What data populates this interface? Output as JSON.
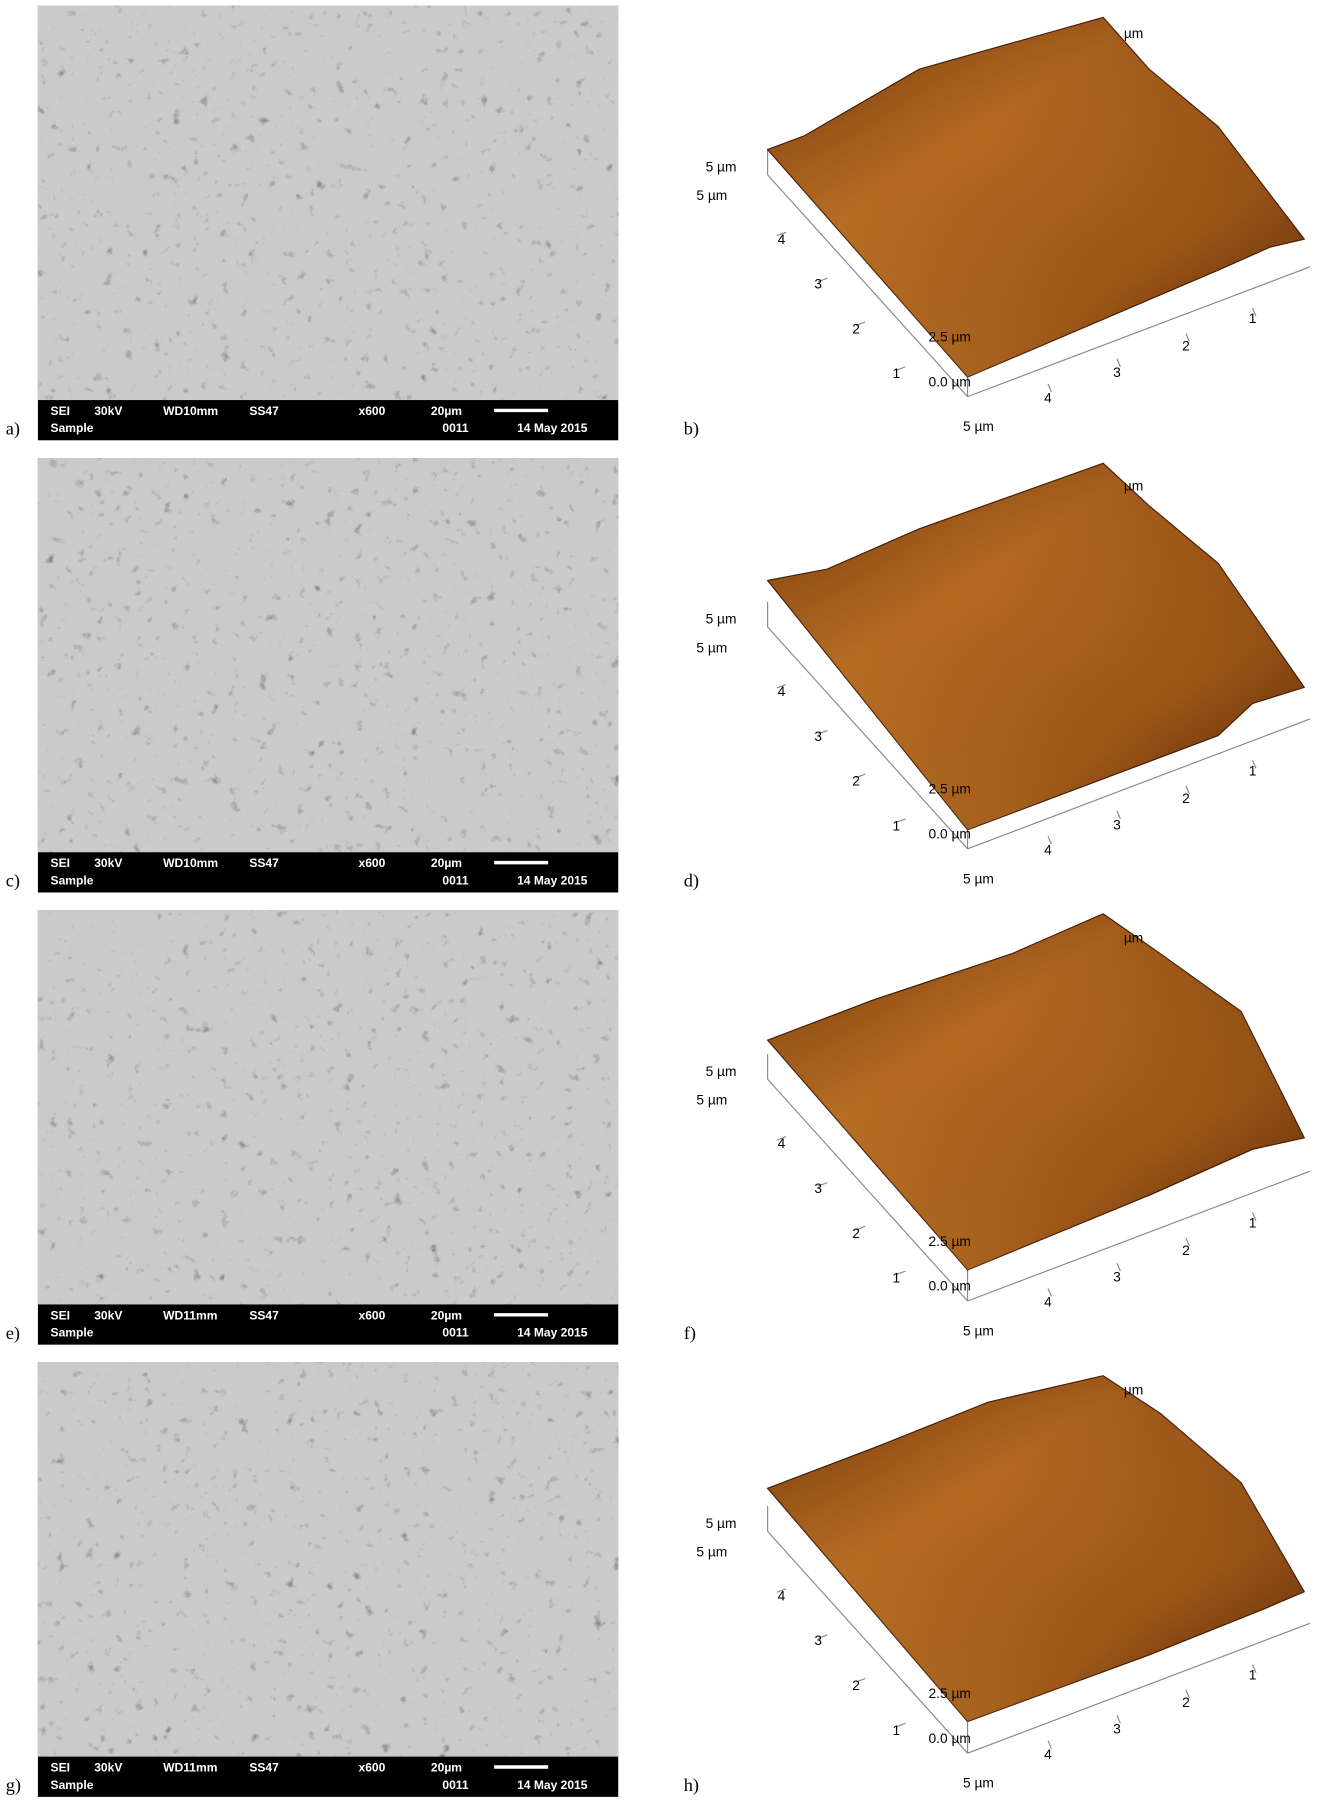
{
  "figure": {
    "rows": [
      {
        "sem": {
          "label": "a)",
          "info": [
            "SEI",
            "30kV",
            "WD10mm",
            "SS47",
            "x600",
            "20µm",
            "Sample",
            "0011",
            "14 May 2015"
          ]
        },
        "afm": {
          "label": "b)",
          "axis_labels": [
            "µm",
            "5 µm",
            "5 µm",
            "4",
            "3",
            "2",
            "1",
            "2.5 µm",
            "0.0 µm",
            "4",
            "3",
            "2",
            "1",
            "5 µm"
          ]
        }
      },
      {
        "sem": {
          "label": "c)",
          "info": [
            "SEI",
            "30kV",
            "WD10mm",
            "SS47",
            "x600",
            "20µm",
            "Sample",
            "0011",
            "14 May 2015"
          ]
        },
        "afm": {
          "label": "d)",
          "axis_labels": [
            "µm",
            "5 µm",
            "5 µm",
            "4",
            "3",
            "2",
            "1",
            "2.5 µm",
            "0.0 µm",
            "4",
            "3",
            "2",
            "1",
            "5 µm"
          ]
        }
      },
      {
        "sem": {
          "label": "e)",
          "info": [
            "SEI",
            "30kV",
            "WD11mm",
            "SS47",
            "x600",
            "20µm",
            "Sample",
            "0011",
            "14 May 2015"
          ]
        },
        "afm": {
          "label": "f)",
          "axis_labels": [
            "µm",
            "5 µm",
            "5 µm",
            "4",
            "3",
            "2",
            "1",
            "2.5 µm",
            "0.0 µm",
            "4",
            "3",
            "2",
            "1",
            "5 µm"
          ]
        }
      },
      {
        "sem": {
          "label": "g)",
          "info": [
            "SEI",
            "30kV",
            "WD11mm",
            "SS47",
            "x600",
            "20µm",
            "Sample",
            "0011",
            "14 May 2015"
          ]
        },
        "afm": {
          "label": "h)",
          "axis_labels": [
            "µm",
            "5 µm",
            "5 µm",
            "4",
            "3",
            "2",
            "1",
            "2.5 µm",
            "0.0 µm",
            "4",
            "3",
            "2",
            "1",
            "5 µm"
          ]
        }
      }
    ]
  }
}
